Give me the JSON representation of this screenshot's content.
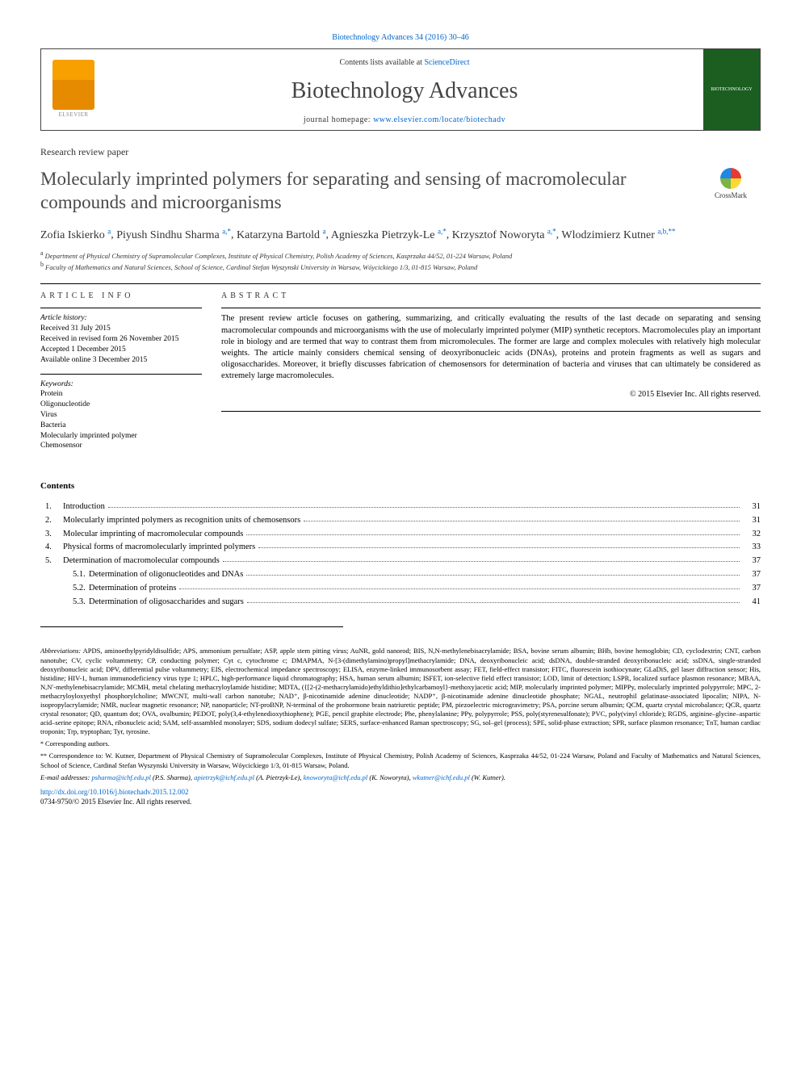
{
  "top_citation": "Biotechnology Advances 34 (2016) 30–46",
  "header": {
    "contents_line_prefix": "Contents lists available at ",
    "contents_link": "ScienceDirect",
    "journal": "Biotechnology Advances",
    "homepage_label": "journal homepage: ",
    "homepage_url": "www.elsevier.com/locate/biotechadv",
    "cover_text": "BIOTECHNOLOGY"
  },
  "article_type": "Research review paper",
  "title": "Molecularly imprinted polymers for separating and sensing of macromolecular compounds and microorganisms",
  "crossmark": "CrossMark",
  "authors": [
    {
      "name": "Zofia Iskierko",
      "sup": "a"
    },
    {
      "name": "Piyush Sindhu Sharma",
      "sup": "a,*"
    },
    {
      "name": "Katarzyna Bartold",
      "sup": "a"
    },
    {
      "name": "Agnieszka Pietrzyk-Le",
      "sup": "a,*"
    },
    {
      "name": "Krzysztof Noworyta",
      "sup": "a,*"
    },
    {
      "name": "Wlodzimierz Kutner",
      "sup": "a,b,**"
    }
  ],
  "affiliations": {
    "a": "Department of Physical Chemistry of Supramolecular Complexes, Institute of Physical Chemistry, Polish Academy of Sciences, Kasprzaka 44/52, 01-224 Warsaw, Poland",
    "b": "Faculty of Mathematics and Natural Sciences, School of Science, Cardinal Stefan Wyszynski University in Warsaw, Wóycickiego 1/3, 01-815 Warsaw, Poland"
  },
  "info": {
    "heading": "article info",
    "history_label": "Article history:",
    "history": [
      "Received 31 July 2015",
      "Received in revised form 26 November 2015",
      "Accepted 1 December 2015",
      "Available online 3 December 2015"
    ],
    "keywords_label": "Keywords:",
    "keywords": [
      "Protein",
      "Oligonucleotide",
      "Virus",
      "Bacteria",
      "Molecularly imprinted polymer",
      "Chemosensor"
    ]
  },
  "abstract": {
    "heading": "abstract",
    "text": "The present review article focuses on gathering, summarizing, and critically evaluating the results of the last decade on separating and sensing macromolecular compounds and microorganisms with the use of molecularly imprinted polymer (MIP) synthetic receptors. Macromolecules play an important role in biology and are termed that way to contrast them from micromolecules. The former are large and complex molecules with relatively high molecular weights. The article mainly considers chemical sensing of deoxyribonucleic acids (DNAs), proteins and protein fragments as well as sugars and oligosaccharides. Moreover, it briefly discusses fabrication of chemosensors for determination of bacteria and viruses that can ultimately be considered as extremely large macromolecules.",
    "copyright": "© 2015 Elsevier Inc. All rights reserved."
  },
  "contents": {
    "heading": "Contents",
    "items": [
      {
        "num": "1.",
        "text": "Introduction",
        "page": "31"
      },
      {
        "num": "2.",
        "text": "Molecularly imprinted polymers as recognition units of chemosensors",
        "page": "31"
      },
      {
        "num": "3.",
        "text": "Molecular imprinting of macromolecular compounds",
        "page": "32"
      },
      {
        "num": "4.",
        "text": "Physical forms of macromolecularly imprinted polymers",
        "page": "33"
      },
      {
        "num": "5.",
        "text": "Determination of macromolecular compounds",
        "page": "37"
      }
    ],
    "subitems": [
      {
        "num": "5.1.",
        "text": "Determination of oligonucleotides and DNAs",
        "page": "37"
      },
      {
        "num": "5.2.",
        "text": "Determination of proteins",
        "page": "37"
      },
      {
        "num": "5.3.",
        "text": "Determination of oligosaccharides and sugars",
        "page": "41"
      }
    ]
  },
  "abbrev": {
    "label": "Abbreviations:",
    "text": "APDS, aminoethylpyridyldisulfide; APS, ammonium persulfate; ASP, apple stem pitting virus; AuNR, gold nanorod; BIS, N,N-methylenebisacrylamide; BSA, bovine serum albumin; BHb, bovine hemoglobin; CD, cyclodextrin; CNT, carbon nanotube; CV, cyclic voltammetry; CP, conducting polymer; Cyt c, cytochrome c; DMAPMA, N-[3-(dimethylamino)propyl]methacrylamide; DNA, deoxyribonucleic acid; dsDNA, double-stranded deoxyribonucleic acid; ssDNA, single-stranded deoxyribonucleic acid; DPV, differential pulse voltammetry; EIS, electrochemical impedance spectroscopy; ELISA, enzyme-linked immunosorbent assay; FET, field-effect transistor; FITC, fluorescein isothiocynate; GLaDiS, gel laser diffraction sensor; His, histidine; HIV-1, human immunodeficiency virus type 1; HPLC, high-performance liquid chromatography; HSA, human serum albumin; ISFET, ion-selective field effect transistor; LOD, limit of detection; LSPR, localized surface plasmon resonance; MBAA, N,N′-methylenebisacrylamide; MCMH, metal chelating methacryloylamide histidine; MDTA, ({[2-(2-methacrylamido)ethyldithio]ethylcarbamoyl}-methoxy)acetic acid; MIP, molecularly imprinted polymer; MIPPy, molecularly imprinted polypyrrole; MPC, 2-methacryloyloxyethyl phosphorylcholine; MWCNT, multi-wall carbon nanotube; NAD⁺, β-nicotinamide adenine dinucleotide; NADP⁺, β-nicotinamide adenine dinucleotide phosphate; NGAL, neutrophil gelatinase-associated lipocalin; NIPA, N-isopropylacrylamide; NMR, nuclear magnetic resonance; NP, nanoparticle; NT-proBNP, N-terminal of the prohormone brain natriuretic peptide; PM, piezoelectric microgravimetry; PSA, porcine serum albumin; QCM, quartz crystal microbalance; QCR, quartz crystal resonator; QD, quantum dot; OVA, ovalbumin; PEDOT, poly(3,4-ethylenedioxythiophene); PGE, pencil graphite electrode; Phe, phenylalanine; PPy, polypyrrole; PSS, poly(styrenesulfonate); PVC, poly(vinyl chloride); RGDS, arginine–glycine–aspartic acid–serine epitope; RNA, ribonucleic acid; SAM, self-assambled monolayer; SDS, sodium dodecyl sulfate; SERS, surface-enhanced Raman spectroscopy; SG, sol–gel (process); SPE, solid-phase extraction; SPR, surface plasmon resonance; TnT, human cardiac troponin; Trp, tryptophan; Tyr, tyrosine."
  },
  "footnotes": {
    "star": "Corresponding authors.",
    "dstar": "Correspondence to: W. Kutner, Department of Physical Chemistry of Supramolecular Complexes, Institute of Physical Chemistry, Polish Academy of Sciences, Kasprzaka 44/52, 01-224 Warsaw, Poland and Faculty of Mathematics and Natural Sciences, School of Science, Cardinal Stefan Wyszynski University in Warsaw, Wóycickiego 1/3, 01-815 Warsaw, Poland.",
    "email_label": "E-mail addresses:",
    "emails": [
      {
        "addr": "psharma@ichf.edu.pl",
        "name": "(P.S. Sharma)"
      },
      {
        "addr": "apietrzyk@ichf.edu.pl",
        "name": "(A. Pietrzyk-Le)"
      },
      {
        "addr": "knoworyta@ichf.edu.pl",
        "name": "(K. Noworyta)"
      },
      {
        "addr": "wkutner@ichf.edu.pl",
        "name": "(W. Kutner)"
      }
    ]
  },
  "bottom": {
    "doi": "http://dx.doi.org/10.1016/j.biotechadv.2015.12.002",
    "issn": "0734-9750/© 2015 Elsevier Inc. All rights reserved."
  },
  "colors": {
    "link": "#0066cc",
    "title": "#4a4a4a",
    "text": "#000"
  }
}
